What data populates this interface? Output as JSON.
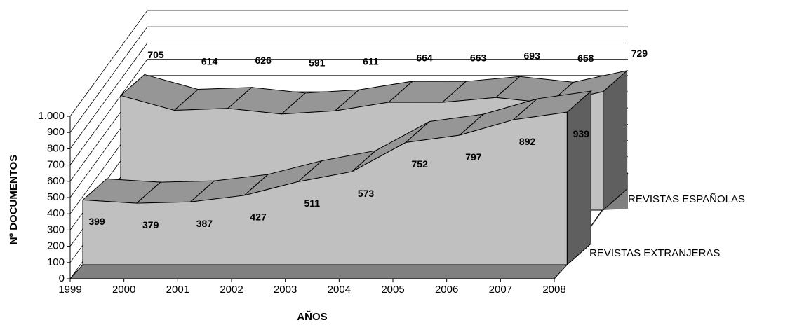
{
  "chart_data": {
    "type": "area3d",
    "y_label": "Nº DOCUMENTOS",
    "x_label": "AÑOS",
    "categories": [
      "1999",
      "2000",
      "2001",
      "2002",
      "2003",
      "2004",
      "2005",
      "2006",
      "2007",
      "2008"
    ],
    "series": [
      {
        "name": "REVISTAS ESPAÑOLAS",
        "color": "#c0c0c0",
        "values": [
          705,
          614,
          626,
          591,
          611,
          664,
          663,
          693,
          658,
          729
        ]
      },
      {
        "name": "REVISTAS EXTRANJERAS",
        "color": "#c0c0c0",
        "values": [
          399,
          379,
          387,
          427,
          511,
          573,
          752,
          797,
          892,
          939
        ]
      }
    ],
    "ylim": [
      0,
      1000
    ],
    "yticks": [
      0,
      100,
      200,
      300,
      400,
      500,
      600,
      700,
      800,
      900,
      {
        "value": 1000,
        "label": "1.000"
      }
    ],
    "grid": true
  }
}
